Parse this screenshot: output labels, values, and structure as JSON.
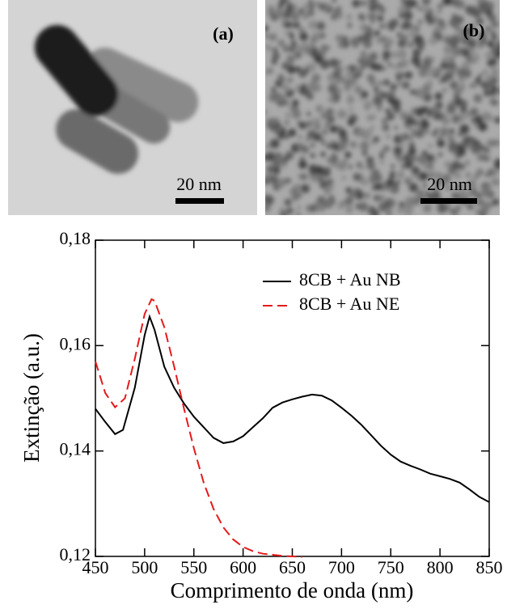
{
  "panels": [
    {
      "label": "(a)",
      "scale": "20 nm"
    },
    {
      "label": "(b)",
      "scale": "20 nm"
    }
  ],
  "chart_data": {
    "type": "line",
    "xlabel": "Comprimento de onda (nm)",
    "ylabel": "Extinção (a.u.)",
    "xlim": [
      450,
      850
    ],
    "xticks": [
      450,
      500,
      550,
      600,
      650,
      700,
      750,
      800,
      850
    ],
    "ylim": [
      0.12,
      0.18
    ],
    "yticks": [
      {
        "value": 0.12,
        "label": "0,12"
      },
      {
        "value": 0.14,
        "label": "0,14"
      },
      {
        "value": 0.16,
        "label": "0,16"
      },
      {
        "value": 0.18,
        "label": "0,18"
      }
    ],
    "legend": "upper right",
    "series": [
      {
        "name": "8CB + Au NB",
        "color": "#000000",
        "dash": "solid",
        "x": [
          450,
          460,
          470,
          478,
          490,
          500,
          505,
          510,
          520,
          530,
          540,
          550,
          560,
          570,
          580,
          590,
          600,
          610,
          620,
          630,
          640,
          650,
          660,
          670,
          680,
          690,
          700,
          710,
          720,
          730,
          740,
          750,
          760,
          770,
          780,
          790,
          800,
          810,
          820,
          830,
          840,
          850
        ],
        "values": [
          0.148,
          0.1455,
          0.1432,
          0.144,
          0.152,
          0.162,
          0.1655,
          0.163,
          0.156,
          0.152,
          0.149,
          0.1465,
          0.1445,
          0.1425,
          0.1415,
          0.1418,
          0.1428,
          0.1445,
          0.1462,
          0.1482,
          0.1492,
          0.1498,
          0.1503,
          0.1507,
          0.1505,
          0.1496,
          0.1482,
          0.1467,
          0.145,
          0.143,
          0.141,
          0.1393,
          0.138,
          0.1372,
          0.1365,
          0.1357,
          0.1352,
          0.1347,
          0.134,
          0.1327,
          0.1313,
          0.1303
        ]
      },
      {
        "name": "8CB + Au NE",
        "color": "#e41a1c",
        "dash": "dashed",
        "x": [
          450,
          460,
          470,
          480,
          490,
          500,
          507,
          510,
          520,
          530,
          540,
          550,
          560,
          570,
          580,
          590,
          600,
          610,
          620,
          630,
          640,
          650,
          660
        ],
        "values": [
          0.157,
          0.151,
          0.1483,
          0.15,
          0.1575,
          0.166,
          0.1688,
          0.1685,
          0.1635,
          0.156,
          0.148,
          0.1405,
          0.134,
          0.129,
          0.1255,
          0.1232,
          0.1218,
          0.121,
          0.1205,
          0.1203,
          0.1201,
          0.12,
          0.1199
        ]
      }
    ]
  }
}
